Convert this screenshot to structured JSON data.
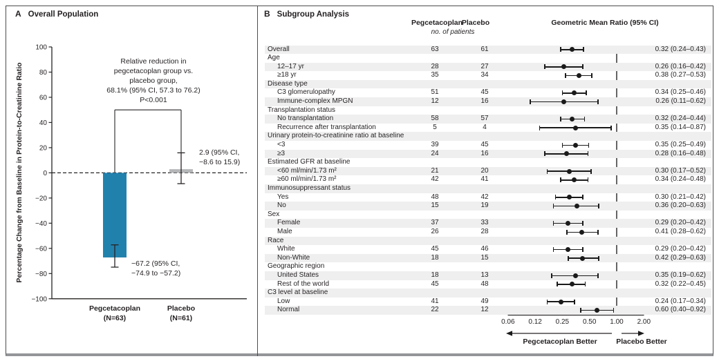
{
  "chart_data": [
    {
      "type": "bar",
      "panel_label": "A",
      "title": "Overall Population",
      "ylabel": "Percentage Change from Baseline in Protein-to-Creatinine Ratio",
      "ylim": [
        -100,
        100
      ],
      "ytick_step": 20,
      "zero_line": "dashed",
      "categories": [
        "Pegcetacoplan",
        "Placebo"
      ],
      "bars": [
        {
          "category": "Pegcetacoplan",
          "n_label": "(N=63)",
          "value": -67.2,
          "ci_low": -74.9,
          "ci_high": -57.2,
          "color": "#2181ad",
          "annotation_line1": "−67.2 (95% CI,",
          "annotation_line2": "−74.9 to −57.2)"
        },
        {
          "category": "Placebo",
          "n_label": "(N=61)",
          "value": 2.9,
          "ci_low": -8.6,
          "ci_high": 15.9,
          "color": "#b4b6b8",
          "annotation_line1": "2.9 (95% CI,",
          "annotation_line2": "−8.6 to 15.9)"
        }
      ],
      "comparison": {
        "bracket_y": 50,
        "lines": [
          "Relative reduction in",
          "pegcetacoplan group vs.",
          "placebo group,",
          "68.1% (95% CI, 57.3 to 76.2)",
          "P<0.001"
        ]
      }
    },
    {
      "type": "forest",
      "panel_label": "B",
      "title": "Subgroup Analysis",
      "columns": {
        "peg": "Pegcetacoplan",
        "placebo": "Placebo",
        "unit": "no. of patients",
        "ratio": "Geometric Mean Ratio (95% CI)"
      },
      "axis": {
        "scale": "log2",
        "ticks": [
          0.0625,
          0.125,
          0.25,
          0.5,
          1,
          2
        ],
        "tick_labels": [
          "0.06",
          "0.12",
          "0.25",
          "0.50",
          "1.00",
          "2.00"
        ],
        "ref_line": 1.0
      },
      "direction": {
        "left": "Pegcetacoplan Better",
        "right": "Placebo Better"
      },
      "rows": [
        {
          "type": "data",
          "label": "Overall",
          "indent": 0,
          "peg": 63,
          "placebo": 61,
          "est": 0.32,
          "lo": 0.24,
          "hi": 0.43,
          "ci_text": "0.32 (0.24–0.43)"
        },
        {
          "type": "header",
          "label": "Age"
        },
        {
          "type": "data",
          "label": "12–17 yr",
          "indent": 1,
          "peg": 28,
          "placebo": 27,
          "est": 0.26,
          "lo": 0.16,
          "hi": 0.42,
          "ci_text": "0.26 (0.16–0.42)"
        },
        {
          "type": "data",
          "label": "≥18 yr",
          "indent": 1,
          "peg": 35,
          "placebo": 34,
          "est": 0.38,
          "lo": 0.27,
          "hi": 0.53,
          "ci_text": "0.38 (0.27–0.53)"
        },
        {
          "type": "header",
          "label": "Disease type"
        },
        {
          "type": "data",
          "label": "C3 glomerulopathy",
          "indent": 1,
          "peg": 51,
          "placebo": 45,
          "est": 0.34,
          "lo": 0.25,
          "hi": 0.46,
          "ci_text": "0.34 (0.25–0.46)"
        },
        {
          "type": "data",
          "label": "Immune-complex MPGN",
          "indent": 1,
          "peg": 12,
          "placebo": 16,
          "est": 0.26,
          "lo": 0.11,
          "hi": 0.62,
          "ci_text": "0.26 (0.11–0.62)"
        },
        {
          "type": "header",
          "label": "Transplantation status"
        },
        {
          "type": "data",
          "label": "No transplantation",
          "indent": 1,
          "peg": 58,
          "placebo": 57,
          "est": 0.32,
          "lo": 0.24,
          "hi": 0.44,
          "ci_text": "0.32 (0.24–0.44)"
        },
        {
          "type": "data",
          "label": "Recurrence after transplantation",
          "indent": 1,
          "peg": 5,
          "placebo": 4,
          "est": 0.35,
          "lo": 0.14,
          "hi": 0.87,
          "ci_text": "0.35 (0.14–0.87)"
        },
        {
          "type": "header",
          "label": "Urinary protein-to-creatinine ratio at baseline"
        },
        {
          "type": "data",
          "label": "<3",
          "indent": 1,
          "peg": 39,
          "placebo": 45,
          "est": 0.35,
          "lo": 0.25,
          "hi": 0.49,
          "ci_text": "0.35 (0.25–0.49)"
        },
        {
          "type": "data",
          "label": "≥3",
          "indent": 1,
          "peg": 24,
          "placebo": 16,
          "est": 0.28,
          "lo": 0.16,
          "hi": 0.48,
          "ci_text": "0.28 (0.16–0.48)"
        },
        {
          "type": "header",
          "label": "Estimated GFR at baseline"
        },
        {
          "type": "data",
          "label": "<60 ml/min/1.73 m²",
          "indent": 1,
          "peg": 21,
          "placebo": 20,
          "est": 0.3,
          "lo": 0.17,
          "hi": 0.52,
          "ci_text": "0.30 (0.17–0.52)"
        },
        {
          "type": "data",
          "label": "≥60 ml/min/1.73 m²",
          "indent": 1,
          "peg": 42,
          "placebo": 41,
          "est": 0.34,
          "lo": 0.24,
          "hi": 0.48,
          "ci_text": "0.34 (0.24–0.48)"
        },
        {
          "type": "header",
          "label": "Immunosuppressant status"
        },
        {
          "type": "data",
          "label": "Yes",
          "indent": 1,
          "peg": 48,
          "placebo": 42,
          "est": 0.3,
          "lo": 0.21,
          "hi": 0.42,
          "ci_text": "0.30 (0.21–0.42)"
        },
        {
          "type": "data",
          "label": "No",
          "indent": 1,
          "peg": 15,
          "placebo": 19,
          "est": 0.36,
          "lo": 0.2,
          "hi": 0.63,
          "ci_text": "0.36 (0.20–0.63)"
        },
        {
          "type": "header",
          "label": "Sex"
        },
        {
          "type": "data",
          "label": "Female",
          "indent": 1,
          "peg": 37,
          "placebo": 33,
          "est": 0.29,
          "lo": 0.2,
          "hi": 0.42,
          "ci_text": "0.29 (0.20–0.42)"
        },
        {
          "type": "data",
          "label": "Male",
          "indent": 1,
          "peg": 26,
          "placebo": 28,
          "est": 0.41,
          "lo": 0.28,
          "hi": 0.62,
          "ci_text": "0.41 (0.28–0.62)"
        },
        {
          "type": "header",
          "label": "Race"
        },
        {
          "type": "data",
          "label": "White",
          "indent": 1,
          "peg": 45,
          "placebo": 46,
          "est": 0.29,
          "lo": 0.2,
          "hi": 0.42,
          "ci_text": "0.29 (0.20–0.42)"
        },
        {
          "type": "data",
          "label": "Non-White",
          "indent": 1,
          "peg": 18,
          "placebo": 15,
          "est": 0.42,
          "lo": 0.29,
          "hi": 0.63,
          "ci_text": "0.42 (0.29–0.63)"
        },
        {
          "type": "header",
          "label": "Geographic region"
        },
        {
          "type": "data",
          "label": "United States",
          "indent": 1,
          "peg": 18,
          "placebo": 13,
          "est": 0.35,
          "lo": 0.19,
          "hi": 0.62,
          "ci_text": "0.35 (0.19–0.62)"
        },
        {
          "type": "data",
          "label": "Rest of the world",
          "indent": 1,
          "peg": 45,
          "placebo": 48,
          "est": 0.32,
          "lo": 0.22,
          "hi": 0.45,
          "ci_text": "0.32 (0.22–0.45)"
        },
        {
          "type": "header",
          "label": "C3 level at baseline"
        },
        {
          "type": "data",
          "label": "Low",
          "indent": 1,
          "peg": 41,
          "placebo": 49,
          "est": 0.24,
          "lo": 0.17,
          "hi": 0.34,
          "ci_text": "0.24 (0.17–0.34)"
        },
        {
          "type": "data",
          "label": "Normal",
          "indent": 1,
          "peg": 22,
          "placebo": 12,
          "est": 0.6,
          "lo": 0.4,
          "hi": 0.92,
          "ci_text": "0.60 (0.40–0.92)"
        }
      ]
    }
  ]
}
